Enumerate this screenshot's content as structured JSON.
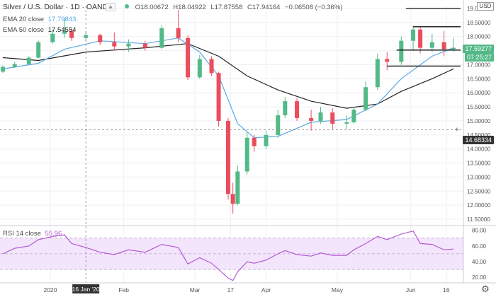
{
  "header": {
    "symbol": "Silver / U.S. Dollar · 1D · OANDA",
    "ohlc": [
      "O18.00672",
      "H18.04922",
      "L17.87558",
      "C17.94164",
      "−0.06508 (−0.36%)"
    ]
  },
  "indicators": {
    "ema20": {
      "label": "EMA 20 close",
      "value": "17.79843",
      "color": "#5aa9e6"
    },
    "ema50": {
      "label": "EMA 50 close",
      "value": "17.54554",
      "color": "#222222"
    },
    "rsi": {
      "label": "RSI 14 close",
      "value": "55.96",
      "color": "#b45bd6"
    }
  },
  "price_axis": {
    "currency_button": "USD",
    "current_price_tag": "17.59277",
    "countdown_tag": "07:25:27",
    "crosshair_price_tag": "14.68334",
    "tick_labels": [
      "19.00000",
      "18.50000",
      "18.00000",
      "17.50000",
      "17.00000",
      "16.50000",
      "16.00000",
      "15.50000",
      "15.00000",
      "14.50000",
      "14.00000",
      "13.50000",
      "13.00000",
      "12.50000",
      "12.00000",
      "11.50000"
    ]
  },
  "rsi_axis": {
    "tick_labels": [
      "80.00",
      "60.00",
      "40.00",
      "20.00"
    ]
  },
  "time_axis": {
    "labels": [
      "2020",
      "Feb",
      "Mar",
      "17",
      "Apr",
      "May",
      "Jun",
      "16"
    ],
    "crosshair_date": "16 Jan '20"
  },
  "colors": {
    "up": "#53b987",
    "down": "#eb4d5c",
    "rsi_band": "#f3e5fb",
    "background": "#ffffff"
  },
  "chart_data": [
    {
      "type": "candlestick",
      "title": "Silver / U.S. Dollar · 1D · OANDA",
      "xlabel": "",
      "ylabel": "",
      "ylim": [
        11.3,
        19.1
      ],
      "x_range": [
        "2019-12-12",
        "2020-06-22"
      ],
      "series": [
        {
          "name": "Price",
          "kind": "candles",
          "values": [
            {
              "x": "2019-12-12",
              "o": 16.75,
              "h": 16.98,
              "l": 16.7,
              "c": 16.92
            },
            {
              "x": "2019-12-17",
              "o": 16.92,
              "h": 17.1,
              "l": 16.88,
              "c": 17.02
            },
            {
              "x": "2019-12-23",
              "o": 17.02,
              "h": 17.3,
              "l": 17.0,
              "c": 17.25
            },
            {
              "x": "2019-12-27",
              "o": 17.25,
              "h": 17.85,
              "l": 17.22,
              "c": 17.8
            },
            {
              "x": "2020-01-02",
              "o": 17.8,
              "h": 18.25,
              "l": 17.75,
              "c": 18.1
            },
            {
              "x": "2020-01-07",
              "o": 18.1,
              "h": 18.65,
              "l": 17.95,
              "c": 18.2
            },
            {
              "x": "2020-01-10",
              "o": 18.2,
              "h": 18.3,
              "l": 17.85,
              "c": 17.95
            },
            {
              "x": "2020-01-16",
              "o": 17.95,
              "h": 18.2,
              "l": 17.85,
              "c": 18.05
            },
            {
              "x": "2020-01-22",
              "o": 18.05,
              "h": 18.1,
              "l": 17.7,
              "c": 17.8
            },
            {
              "x": "2020-01-28",
              "o": 17.8,
              "h": 18.15,
              "l": 17.5,
              "c": 17.65
            },
            {
              "x": "2020-02-03",
              "o": 17.65,
              "h": 17.9,
              "l": 17.45,
              "c": 17.75
            },
            {
              "x": "2020-02-10",
              "o": 17.75,
              "h": 17.85,
              "l": 17.5,
              "c": 17.6
            },
            {
              "x": "2020-02-17",
              "o": 17.6,
              "h": 18.4,
              "l": 17.55,
              "c": 18.3
            },
            {
              "x": "2020-02-24",
              "o": 18.3,
              "h": 18.95,
              "l": 17.8,
              "c": 17.95
            },
            {
              "x": "2020-02-28",
              "o": 17.95,
              "h": 18.05,
              "l": 16.45,
              "c": 16.55
            },
            {
              "x": "2020-03-04",
              "o": 16.55,
              "h": 17.35,
              "l": 16.5,
              "c": 17.2
            },
            {
              "x": "2020-03-09",
              "o": 17.2,
              "h": 17.3,
              "l": 16.6,
              "c": 16.7
            },
            {
              "x": "2020-03-12",
              "o": 16.7,
              "h": 16.75,
              "l": 14.8,
              "c": 15.0
            },
            {
              "x": "2020-03-16",
              "o": 15.0,
              "h": 15.1,
              "l": 12.2,
              "c": 12.4
            },
            {
              "x": "2020-03-18",
              "o": 12.4,
              "h": 12.8,
              "l": 11.7,
              "c": 12.05
            },
            {
              "x": "2020-03-20",
              "o": 12.05,
              "h": 13.4,
              "l": 12.0,
              "c": 13.2
            },
            {
              "x": "2020-03-24",
              "o": 13.2,
              "h": 14.6,
              "l": 13.1,
              "c": 14.4
            },
            {
              "x": "2020-03-27",
              "o": 14.4,
              "h": 14.5,
              "l": 13.9,
              "c": 14.1
            },
            {
              "x": "2020-04-01",
              "o": 14.1,
              "h": 14.65,
              "l": 14.0,
              "c": 14.5
            },
            {
              "x": "2020-04-06",
              "o": 14.5,
              "h": 15.4,
              "l": 14.4,
              "c": 15.2
            },
            {
              "x": "2020-04-09",
              "o": 15.2,
              "h": 15.85,
              "l": 15.1,
              "c": 15.7
            },
            {
              "x": "2020-04-14",
              "o": 15.7,
              "h": 15.8,
              "l": 15.0,
              "c": 15.1
            },
            {
              "x": "2020-04-20",
              "o": 15.1,
              "h": 15.4,
              "l": 14.65,
              "c": 15.0
            },
            {
              "x": "2020-04-24",
              "o": 15.0,
              "h": 15.5,
              "l": 14.9,
              "c": 15.3
            },
            {
              "x": "2020-04-29",
              "o": 15.3,
              "h": 15.45,
              "l": 14.7,
              "c": 14.9
            },
            {
              "x": "2020-05-05",
              "o": 14.9,
              "h": 15.2,
              "l": 14.7,
              "c": 14.95
            },
            {
              "x": "2020-05-08",
              "o": 14.95,
              "h": 15.5,
              "l": 14.9,
              "c": 15.4
            },
            {
              "x": "2020-05-13",
              "o": 15.4,
              "h": 16.4,
              "l": 15.35,
              "c": 16.2
            },
            {
              "x": "2020-05-18",
              "o": 16.2,
              "h": 17.4,
              "l": 16.1,
              "c": 17.2
            },
            {
              "x": "2020-05-22",
              "o": 17.2,
              "h": 17.45,
              "l": 16.8,
              "c": 17.1
            },
            {
              "x": "2020-05-28",
              "o": 17.1,
              "h": 18.0,
              "l": 17.0,
              "c": 17.85
            },
            {
              "x": "2020-06-02",
              "o": 17.85,
              "h": 18.4,
              "l": 17.5,
              "c": 18.25
            },
            {
              "x": "2020-06-05",
              "o": 18.25,
              "h": 18.35,
              "l": 17.4,
              "c": 17.6
            },
            {
              "x": "2020-06-10",
              "o": 17.6,
              "h": 18.1,
              "l": 17.45,
              "c": 17.8
            },
            {
              "x": "2020-06-15",
              "o": 17.8,
              "h": 18.2,
              "l": 17.3,
              "c": 17.55
            },
            {
              "x": "2020-06-19",
              "o": 17.55,
              "h": 17.95,
              "l": 17.45,
              "c": 17.6
            }
          ]
        },
        {
          "name": "EMA 20 close",
          "kind": "line",
          "color": "#5aa9e6",
          "values": [
            {
              "x": "2019-12-12",
              "y": 16.85
            },
            {
              "x": "2019-12-27",
              "y": 17.05
            },
            {
              "x": "2020-01-07",
              "y": 17.55
            },
            {
              "x": "2020-01-22",
              "y": 17.85
            },
            {
              "x": "2020-02-10",
              "y": 17.75
            },
            {
              "x": "2020-02-24",
              "y": 17.95
            },
            {
              "x": "2020-03-04",
              "y": 17.45
            },
            {
              "x": "2020-03-12",
              "y": 16.6
            },
            {
              "x": "2020-03-20",
              "y": 14.9
            },
            {
              "x": "2020-03-27",
              "y": 14.4
            },
            {
              "x": "2020-04-06",
              "y": 14.45
            },
            {
              "x": "2020-04-20",
              "y": 14.95
            },
            {
              "x": "2020-05-05",
              "y": 15.05
            },
            {
              "x": "2020-05-18",
              "y": 15.6
            },
            {
              "x": "2020-05-28",
              "y": 16.5
            },
            {
              "x": "2020-06-10",
              "y": 17.3
            },
            {
              "x": "2020-06-19",
              "y": 17.6
            }
          ]
        },
        {
          "name": "EMA 50 close",
          "kind": "line",
          "color": "#222222",
          "values": [
            {
              "x": "2019-12-12",
              "y": 17.25
            },
            {
              "x": "2019-12-27",
              "y": 17.15
            },
            {
              "x": "2020-01-16",
              "y": 17.45
            },
            {
              "x": "2020-02-10",
              "y": 17.6
            },
            {
              "x": "2020-02-28",
              "y": 17.75
            },
            {
              "x": "2020-03-12",
              "y": 17.3
            },
            {
              "x": "2020-03-24",
              "y": 16.6
            },
            {
              "x": "2020-04-06",
              "y": 16.1
            },
            {
              "x": "2020-04-20",
              "y": 15.7
            },
            {
              "x": "2020-05-05",
              "y": 15.45
            },
            {
              "x": "2020-05-18",
              "y": 15.6
            },
            {
              "x": "2020-05-28",
              "y": 16.05
            },
            {
              "x": "2020-06-10",
              "y": 16.5
            },
            {
              "x": "2020-06-19",
              "y": 16.85
            }
          ]
        }
      ],
      "annotations": {
        "horizontal_lines": [
          {
            "from": "2020-05-30",
            "to": "2020-06-22",
            "y": 19.0
          },
          {
            "from": "2020-06-02",
            "to": "2020-06-22",
            "y": 18.35
          },
          {
            "from": "2020-05-26",
            "to": "2020-06-22",
            "y": 17.52
          },
          {
            "from": "2020-05-22",
            "to": "2020-06-22",
            "y": 16.95
          }
        ],
        "crosshair": {
          "x": "2020-01-16",
          "y": 14.68334
        }
      }
    },
    {
      "type": "line",
      "title": "RSI 14 close",
      "xlabel": "",
      "ylabel": "",
      "ylim": [
        13,
        85
      ],
      "band": [
        30,
        70
      ],
      "series": [
        {
          "name": "RSI 14 close",
          "values": [
            {
              "x": "2019-12-12",
              "y": 50
            },
            {
              "x": "2019-12-17",
              "y": 57
            },
            {
              "x": "2019-12-23",
              "y": 60
            },
            {
              "x": "2019-12-27",
              "y": 68
            },
            {
              "x": "2020-01-02",
              "y": 72
            },
            {
              "x": "2020-01-07",
              "y": 74
            },
            {
              "x": "2020-01-10",
              "y": 63
            },
            {
              "x": "2020-01-16",
              "y": 58
            },
            {
              "x": "2020-01-22",
              "y": 52
            },
            {
              "x": "2020-01-28",
              "y": 49
            },
            {
              "x": "2020-02-03",
              "y": 55
            },
            {
              "x": "2020-02-10",
              "y": 52
            },
            {
              "x": "2020-02-17",
              "y": 62
            },
            {
              "x": "2020-02-24",
              "y": 58
            },
            {
              "x": "2020-02-28",
              "y": 37
            },
            {
              "x": "2020-03-04",
              "y": 45
            },
            {
              "x": "2020-03-09",
              "y": 38
            },
            {
              "x": "2020-03-12",
              "y": 30
            },
            {
              "x": "2020-03-16",
              "y": 19
            },
            {
              "x": "2020-03-18",
              "y": 16
            },
            {
              "x": "2020-03-20",
              "y": 27
            },
            {
              "x": "2020-03-24",
              "y": 40
            },
            {
              "x": "2020-03-27",
              "y": 38
            },
            {
              "x": "2020-04-01",
              "y": 42
            },
            {
              "x": "2020-04-06",
              "y": 50
            },
            {
              "x": "2020-04-09",
              "y": 54
            },
            {
              "x": "2020-04-14",
              "y": 49
            },
            {
              "x": "2020-04-20",
              "y": 47
            },
            {
              "x": "2020-04-24",
              "y": 51
            },
            {
              "x": "2020-04-29",
              "y": 48
            },
            {
              "x": "2020-05-05",
              "y": 48
            },
            {
              "x": "2020-05-08",
              "y": 55
            },
            {
              "x": "2020-05-13",
              "y": 63
            },
            {
              "x": "2020-05-18",
              "y": 72
            },
            {
              "x": "2020-05-22",
              "y": 68
            },
            {
              "x": "2020-05-28",
              "y": 75
            },
            {
              "x": "2020-06-02",
              "y": 79
            },
            {
              "x": "2020-06-05",
              "y": 63
            },
            {
              "x": "2020-06-10",
              "y": 62
            },
            {
              "x": "2020-06-15",
              "y": 55
            },
            {
              "x": "2020-06-19",
              "y": 56
            }
          ]
        }
      ]
    }
  ]
}
